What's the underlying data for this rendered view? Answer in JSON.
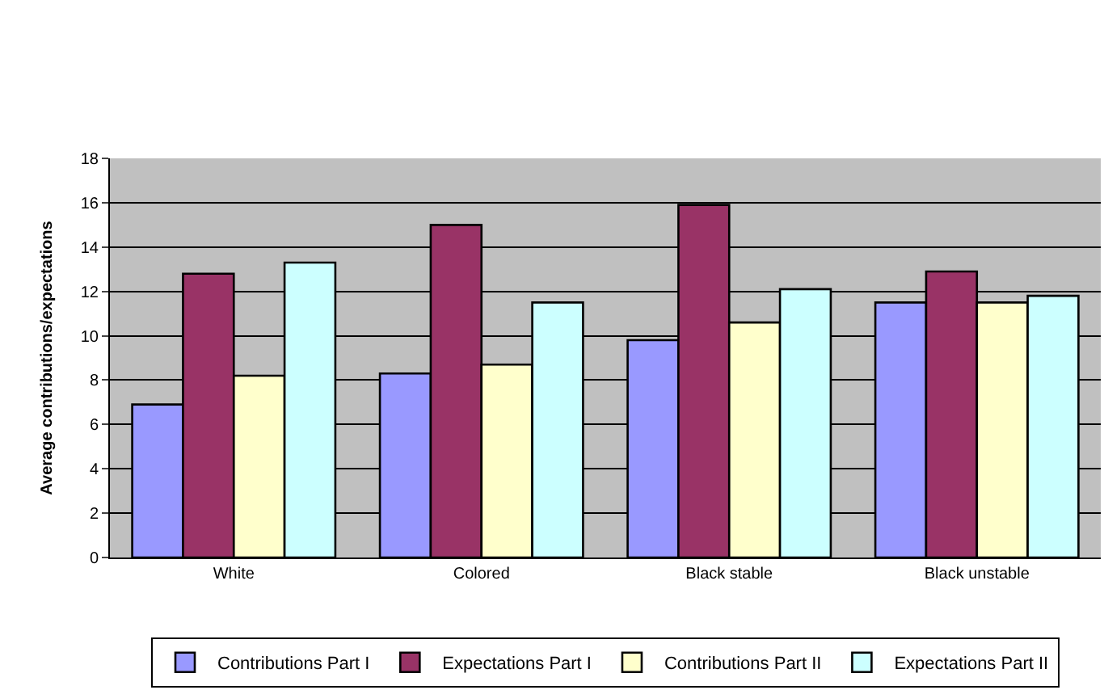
{
  "chart_data": {
    "type": "bar",
    "ylabel": "Average contributions/expectations",
    "categories": [
      "White",
      "Colored",
      "Black stable",
      "Black unstable"
    ],
    "series": [
      {
        "name": "Contributions Part I",
        "color": "#9999ff",
        "values": [
          6.9,
          8.3,
          9.8,
          11.5
        ]
      },
      {
        "name": "Expectations Part I",
        "color": "#993366",
        "values": [
          12.8,
          15.0,
          15.9,
          12.9
        ]
      },
      {
        "name": "Contributions Part II",
        "color": "#ffffcc",
        "values": [
          8.2,
          8.7,
          10.6,
          11.5
        ]
      },
      {
        "name": "Expectations Part II",
        "color": "#ccffff",
        "values": [
          13.3,
          11.5,
          12.1,
          11.8
        ]
      }
    ],
    "ylim": [
      0,
      18
    ],
    "yticks": [
      0,
      2,
      4,
      6,
      8,
      10,
      12,
      14,
      16,
      18
    ],
    "grid": "y",
    "legend": "bottom"
  }
}
